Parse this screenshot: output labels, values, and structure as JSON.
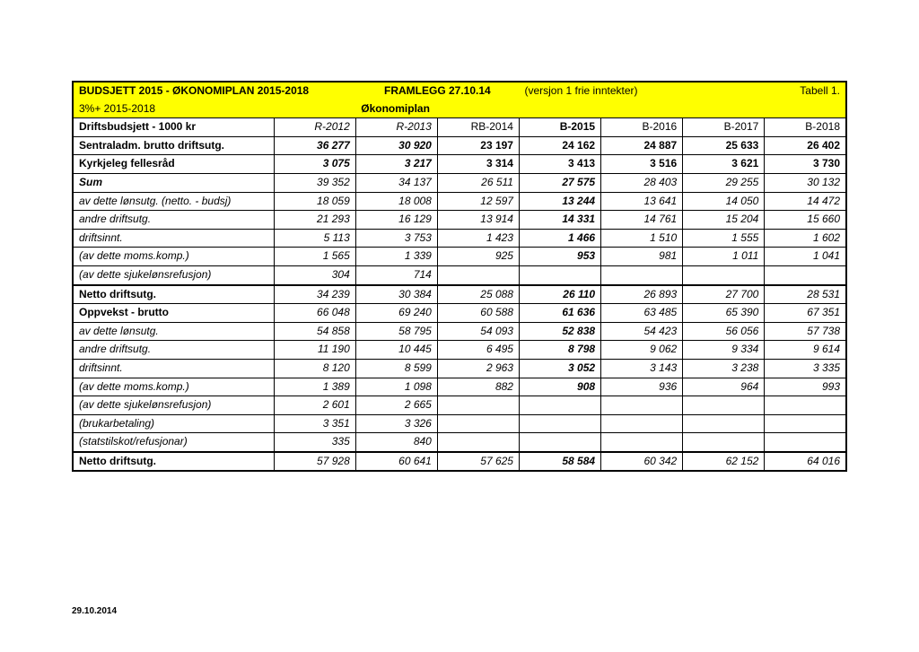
{
  "title_left": "BUDSJETT 2015 - ØKONOMIPLAN 2015-2018",
  "title_mid": "FRAMLEGG  27.10.14",
  "title_right": "(versjon 1 frie inntekter)",
  "title_far_right": "Tabell 1.",
  "subtitle_left": "3%+ 2015-2018",
  "subtitle_mid": "Økonomiplan",
  "columns": [
    "Driftsbudsjett - 1000 kr",
    "R-2012",
    "R-2013",
    "RB-2014",
    "B-2015",
    "B-2016",
    "B-2017",
    "B-2018"
  ],
  "rows": [
    {
      "label": "Sentraladm. brutto driftsutg.",
      "vals": [
        "36 277",
        "30 920",
        "23 197",
        "24 162",
        "24 887",
        "25 633",
        "26 402"
      ],
      "bold": true,
      "italic": false
    },
    {
      "label": "Kyrkjeleg fellesråd",
      "vals": [
        "3 075",
        "3 217",
        "3 314",
        "3 413",
        "3 516",
        "3 621",
        "3 730"
      ],
      "bold": true,
      "italic": false
    },
    {
      "label": "Sum",
      "vals": [
        "39 352",
        "34 137",
        "26 511",
        "27 575",
        "28 403",
        "29 255",
        "30 132"
      ],
      "bold": true,
      "italic": true,
      "varItalic": true
    },
    {
      "label": "av dette lønsutg. (netto. - budsj)",
      "vals": [
        "18 059",
        "18 008",
        "12 597",
        "13 244",
        "13 641",
        "14 050",
        "14 472"
      ],
      "bold": false,
      "italic": true
    },
    {
      "label": "andre driftsutg.",
      "vals": [
        "21 293",
        "16 129",
        "13 914",
        "14 331",
        "14 761",
        "15 204",
        "15 660"
      ],
      "bold": false,
      "italic": true
    },
    {
      "label": "driftsinnt.",
      "vals": [
        "5 113",
        "3 753",
        "1 423",
        "1 466",
        "1 510",
        "1 555",
        "1 602"
      ],
      "bold": false,
      "italic": true
    },
    {
      "label": "(av dette moms.komp.)",
      "vals": [
        "1 565",
        "1 339",
        "925",
        "953",
        "981",
        "1 011",
        "1 041"
      ],
      "bold": false,
      "italic": true
    },
    {
      "label": "(av dette sjukelønsrefusjon)",
      "vals": [
        "304",
        "714",
        "",
        "",
        "",
        "",
        ""
      ],
      "bold": false,
      "italic": true
    },
    {
      "label": "Netto driftsutg.",
      "vals": [
        "34 239",
        "30 384",
        "25 088",
        "26 110",
        "26 893",
        "27 700",
        "28 531"
      ],
      "bold": true,
      "italic": false,
      "varItalic": true,
      "thick": true
    },
    {
      "label": "Oppvekst - brutto",
      "vals": [
        "66 048",
        "69 240",
        "60 588",
        "61 636",
        "63 485",
        "65 390",
        "67 351"
      ],
      "bold": true,
      "italic": false,
      "varItalic": true
    },
    {
      "label": "av dette lønsutg.",
      "vals": [
        "54 858",
        "58 795",
        "54 093",
        "52 838",
        "54 423",
        "56 056",
        "57 738"
      ],
      "bold": false,
      "italic": true
    },
    {
      "label": "andre driftsutg.",
      "vals": [
        "11 190",
        "10 445",
        "6 495",
        "8 798",
        "9 062",
        "9 334",
        "9 614"
      ],
      "bold": false,
      "italic": true
    },
    {
      "label": "driftsinnt.",
      "vals": [
        "8 120",
        "8 599",
        "2 963",
        "3 052",
        "3 143",
        "3 238",
        "3 335"
      ],
      "bold": false,
      "italic": true
    },
    {
      "label": "(av dette moms.komp.)",
      "vals": [
        "1 389",
        "1 098",
        "882",
        "908",
        "936",
        "964",
        "993"
      ],
      "bold": false,
      "italic": true
    },
    {
      "label": "(av dette sjukelønsrefusjon)",
      "vals": [
        "2 601",
        "2 665",
        "",
        "",
        "",
        "",
        ""
      ],
      "bold": false,
      "italic": true
    },
    {
      "label": "(brukarbetaling)",
      "vals": [
        "3 351",
        "3 326",
        "",
        "",
        "",
        "",
        ""
      ],
      "bold": false,
      "italic": true
    },
    {
      "label": "(statstilskot/refusjonar)",
      "vals": [
        "335",
        "840",
        "",
        "",
        "",
        "",
        ""
      ],
      "bold": false,
      "italic": true
    },
    {
      "label": "Netto driftsutg.",
      "vals": [
        "57 928",
        "60 641",
        "57 625",
        "58 584",
        "60 342",
        "62 152",
        "64 016"
      ],
      "bold": true,
      "italic": false,
      "varItalic": true,
      "thick": true
    }
  ],
  "footer_date": "29.10.2014",
  "colors": {
    "highlight": "#ffff00",
    "border": "#000000",
    "background": "#ffffff"
  },
  "fontsize_pt": 12
}
